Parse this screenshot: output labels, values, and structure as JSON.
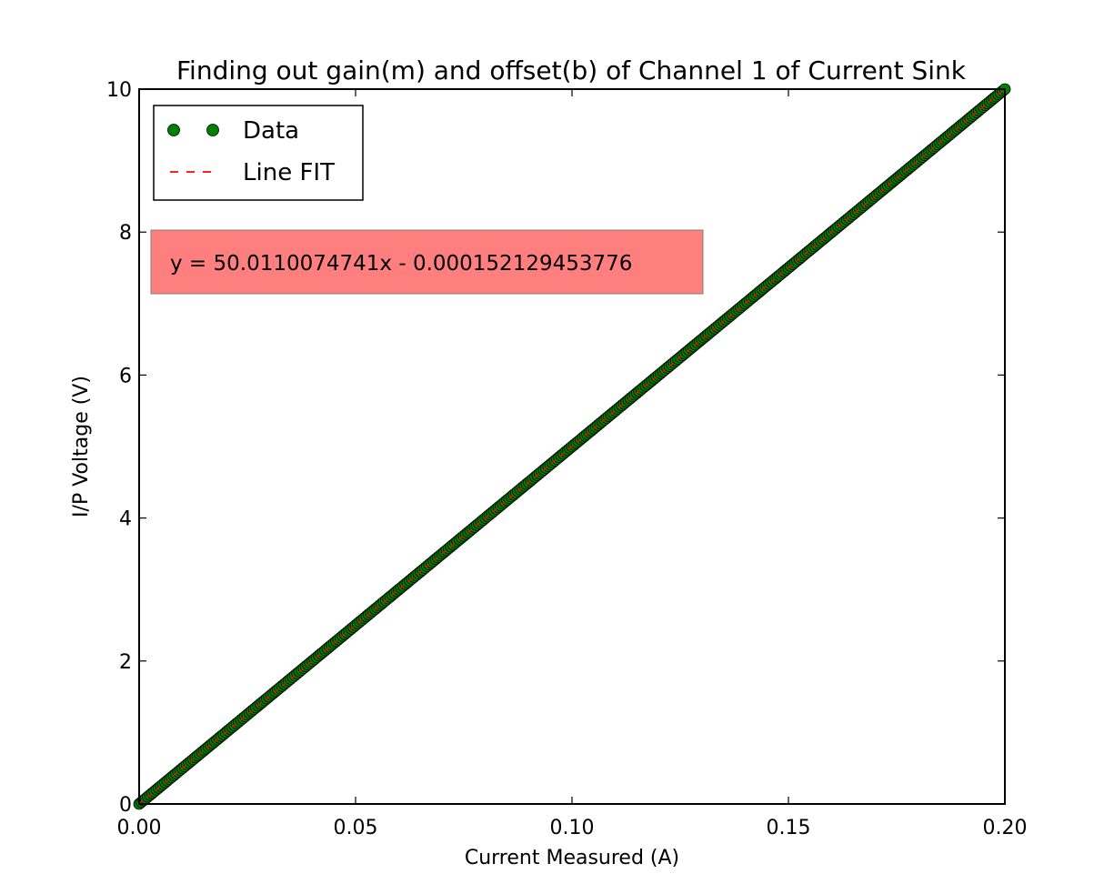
{
  "chart_data": {
    "type": "scatter",
    "title": "Finding out gain(m) and offset(b) of Channel 1 of Current Sink",
    "xlabel": "Current Measured (A)",
    "ylabel": "I/P Voltage (V)",
    "xlim": [
      0.0,
      0.2
    ],
    "ylim": [
      0,
      10
    ],
    "xticks": [
      {
        "value": 0.0,
        "label": "0.00"
      },
      {
        "value": 0.05,
        "label": "0.05"
      },
      {
        "value": 0.1,
        "label": "0.10"
      },
      {
        "value": 0.15,
        "label": "0.15"
      },
      {
        "value": 0.2,
        "label": "0.20"
      }
    ],
    "yticks": [
      {
        "value": 0,
        "label": "0"
      },
      {
        "value": 2,
        "label": "2"
      },
      {
        "value": 4,
        "label": "4"
      },
      {
        "value": 6,
        "label": "6"
      },
      {
        "value": 8,
        "label": "8"
      },
      {
        "value": 10,
        "label": "10"
      }
    ],
    "grid": false,
    "legend_position": "top-left",
    "series": [
      {
        "name": "Data",
        "kind": "scatter",
        "color": "#007f00",
        "x_start": 0.0,
        "x_end": 0.2,
        "y_start": 0.0,
        "y_end": 10.0,
        "point_count": 401
      },
      {
        "name": "Line FIT",
        "kind": "line",
        "style": "dashed",
        "color": "#ff0000",
        "slope": 50.0110074741,
        "intercept": -0.000152129453776
      }
    ],
    "annotation": {
      "text": "y = 50.0110074741x - 0.000152129453776",
      "background": "#ff7f7f"
    }
  }
}
